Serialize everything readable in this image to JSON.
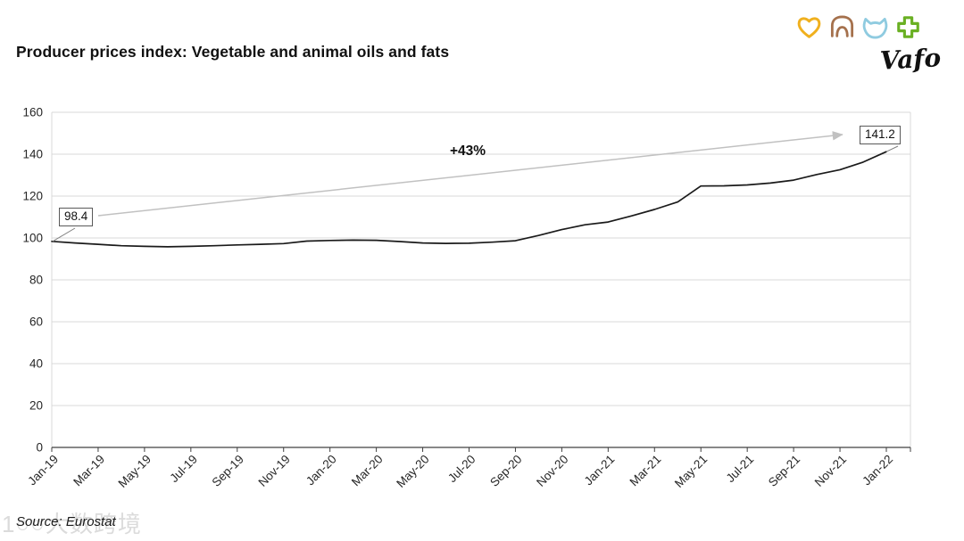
{
  "page": {
    "background": "#ffffff"
  },
  "header": {
    "title": "Producer prices index: Vegetable and animal oils and fats"
  },
  "logo": {
    "brand": "Vafo",
    "icons": [
      {
        "name": "heart-icon",
        "color": "#f0b01e"
      },
      {
        "name": "dog-icon",
        "color": "#a5714d"
      },
      {
        "name": "cat-icon",
        "color": "#8fcbe0"
      },
      {
        "name": "cross-icon",
        "color": "#6ab023"
      }
    ]
  },
  "chart_data": {
    "type": "line",
    "title": "Producer prices index: Vegetable and animal oils and fats",
    "categories": [
      "Jan-19",
      "Feb-19",
      "Mar-19",
      "Apr-19",
      "May-19",
      "Jun-19",
      "Jul-19",
      "Aug-19",
      "Sep-19",
      "Oct-19",
      "Nov-19",
      "Dec-19",
      "Jan-20",
      "Feb-20",
      "Mar-20",
      "Apr-20",
      "May-20",
      "Jun-20",
      "Jul-20",
      "Aug-20",
      "Sep-20",
      "Oct-20",
      "Nov-20",
      "Dec-20",
      "Jan-21",
      "Feb-21",
      "Mar-21",
      "Apr-21",
      "May-21",
      "Jun-21",
      "Jul-21",
      "Aug-21",
      "Sep-21",
      "Oct-21",
      "Nov-21",
      "Dec-21",
      "Jan-22"
    ],
    "values": [
      98.4,
      97.6,
      97.0,
      96.3,
      96.0,
      95.8,
      96.0,
      96.3,
      96.7,
      97.0,
      97.3,
      98.5,
      98.8,
      99.0,
      98.9,
      98.3,
      97.6,
      97.4,
      97.5,
      98.0,
      98.7,
      101.2,
      104.0,
      106.3,
      107.6,
      110.5,
      113.6,
      117.2,
      124.8,
      124.9,
      125.3,
      126.2,
      127.6,
      130.3,
      132.6,
      136.2,
      141.2
    ],
    "tick_labels": [
      "Jan-19",
      "Mar-19",
      "May-19",
      "Jul-19",
      "Sep-19",
      "Nov-19",
      "Jan-20",
      "Mar-20",
      "May-20",
      "Jul-20",
      "Sep-20",
      "Nov-20",
      "Jan-21",
      "Mar-21",
      "May-21",
      "Jul-21",
      "Sep-21",
      "Nov-21",
      "Jan-22"
    ],
    "ylim": [
      0,
      160
    ],
    "ytick_step": 20,
    "grid": "horizontal",
    "legend": "none",
    "xlabel": "",
    "ylabel": "",
    "line_color": "#1a1a1a",
    "grid_color": "#d9d9d9",
    "axis_color": "#404040",
    "label_color": "#262626",
    "start_label": "98.4",
    "end_label": "141.2",
    "annotation": {
      "text": "+43%",
      "arrow_color": "#c1c1c1"
    }
  },
  "footer": {
    "source": "Source: Eurostat"
  },
  "watermark": {
    "text": "1○○大数跨境"
  }
}
